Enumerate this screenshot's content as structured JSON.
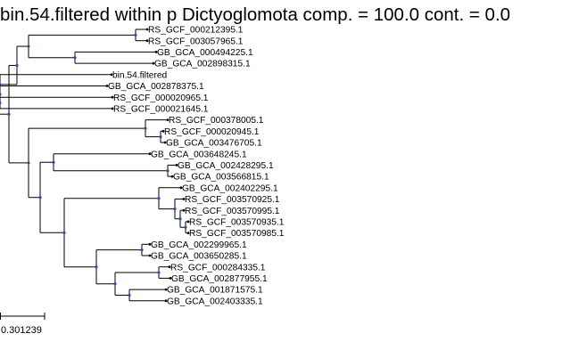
{
  "title": "bin.54.filtered within p Dictyoglomota comp. = 100.0 cont. = 0.0",
  "scale_bar": {
    "label": "0.301239"
  },
  "colors": {
    "node": "#2b4fa8",
    "branch": "#000000",
    "text": "#000000"
  },
  "tree": {
    "children": [
      {
        "children": [
          {
            "children": [
              {
                "children": [
                  {
                    "label": "RS_GCF_000212395.1"
                  },
                  {
                    "label": "RS_GCF_003057965.1"
                  }
                ]
              },
              {
                "children": [
                  {
                    "label": "GB_GCA_000494225.1"
                  },
                  {
                    "label": "GB_GCA_002898315.1"
                  }
                ]
              }
            ]
          },
          {
            "children": [
              {
                "label": "bin.54.filtered"
              },
              {
                "children": [
                  {
                    "label": "GB_GCA_002878375.1"
                  },
                  {
                    "children": [
                      {
                        "label": "RS_GCF_000020965.1"
                      },
                      {
                        "label": "RS_GCF_000021645.1"
                      }
                    ]
                  }
                ]
              }
            ]
          }
        ]
      },
      {
        "children": [
          {
            "children": [
              {
                "label": "RS_GCF_000378005.1"
              },
              {
                "children": [
                  {
                    "label": "RS_GCF_000020945.1"
                  },
                  {
                    "label": "GB_GCA_003476705.1"
                  }
                ]
              }
            ]
          },
          {
            "children": [
              {
                "children": [
                  {
                    "label": "GB_GCA_003648245.1"
                  },
                  {
                    "children": [
                      {
                        "label": "GB_GCA_002428295.1"
                      },
                      {
                        "label": "GB_GCA_003566815.1"
                      }
                    ]
                  }
                ]
              },
              {
                "children": [
                  {
                    "children": [
                      {
                        "label": "GB_GCA_002402295.1"
                      },
                      {
                        "children": [
                          {
                            "label": "RS_GCF_003570925.1"
                          },
                          {
                            "children": [
                              {
                                "label": "RS_GCF_003570995.1"
                              },
                              {
                                "children": [
                                  {
                                    "label": "RS_GCF_003570935.1"
                                  },
                                  {
                                    "label": "RS_GCF_003570985.1"
                                  }
                                ]
                              }
                            ]
                          }
                        ]
                      }
                    ]
                  },
                  {
                    "children": [
                      {
                        "children": [
                          {
                            "label": "GB_GCA_002299965.1"
                          },
                          {
                            "label": "GB_GCA_003650285.1"
                          }
                        ]
                      },
                      {
                        "children": [
                          {
                            "children": [
                              {
                                "label": "RS_GCF_000284335.1"
                              },
                              {
                                "label": "GB_GCA_002877955.1"
                              }
                            ]
                          },
                          {
                            "children": [
                              {
                                "label": "GB_GCA_001871575.1"
                              },
                              {
                                "label": "GB_GCA_002403335.1"
                              }
                            ]
                          }
                        ]
                      }
                    ]
                  }
                ]
              }
            ]
          }
        ]
      }
    ]
  }
}
